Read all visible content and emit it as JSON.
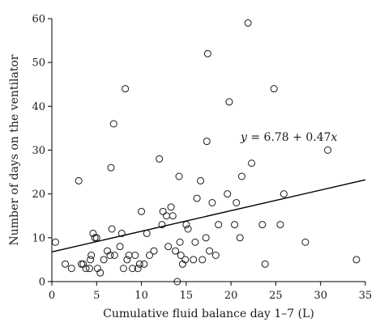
{
  "chart_data": {
    "type": "scatter",
    "xlabel": "Cumulative fluid balance day 1–7 (L)",
    "ylabel": "Number of days on the ventilator",
    "xlim": [
      0,
      35
    ],
    "ylim": [
      0,
      60
    ],
    "xticks": [
      "0",
      "5",
      "10",
      "15",
      "20",
      "25",
      "30",
      "35"
    ],
    "yticks": [
      "0",
      "10",
      "20",
      "30",
      "40",
      "50",
      "60"
    ],
    "grid": false,
    "regression": {
      "label_prefix": "y = ",
      "label_body": "6.78 + 0.47",
      "label_var": "x",
      "intercept": 6.78,
      "slope": 0.47,
      "x_range": [
        0,
        35
      ]
    },
    "points": [
      [
        0.4,
        9
      ],
      [
        1.5,
        4
      ],
      [
        2.2,
        3
      ],
      [
        3,
        23
      ],
      [
        3.3,
        4
      ],
      [
        3.5,
        4
      ],
      [
        3.8,
        3
      ],
      [
        4.2,
        3
      ],
      [
        4.3,
        5
      ],
      [
        4.4,
        6
      ],
      [
        4.6,
        11
      ],
      [
        4.8,
        10
      ],
      [
        5,
        10
      ],
      [
        5.1,
        3
      ],
      [
        5.4,
        2
      ],
      [
        5.8,
        5
      ],
      [
        6.2,
        7
      ],
      [
        6.5,
        6
      ],
      [
        6.6,
        26
      ],
      [
        6.7,
        12
      ],
      [
        6.9,
        36
      ],
      [
        7,
        6
      ],
      [
        7.6,
        8
      ],
      [
        7.8,
        11
      ],
      [
        8,
        3
      ],
      [
        8.2,
        44
      ],
      [
        8.4,
        5
      ],
      [
        8.6,
        6
      ],
      [
        9,
        3
      ],
      [
        9.3,
        6
      ],
      [
        9.6,
        3
      ],
      [
        9.8,
        4
      ],
      [
        10,
        16
      ],
      [
        10.3,
        4
      ],
      [
        10.6,
        11
      ],
      [
        10.9,
        6
      ],
      [
        11.4,
        7
      ],
      [
        12,
        28
      ],
      [
        12.3,
        13
      ],
      [
        12.4,
        16
      ],
      [
        12.8,
        15
      ],
      [
        13,
        8
      ],
      [
        13.3,
        17
      ],
      [
        13.5,
        15
      ],
      [
        13.8,
        7
      ],
      [
        14,
        0
      ],
      [
        14.2,
        24
      ],
      [
        14.3,
        9
      ],
      [
        14.4,
        6
      ],
      [
        14.6,
        4
      ],
      [
        14.9,
        5
      ],
      [
        15,
        13
      ],
      [
        15.2,
        12
      ],
      [
        15.8,
        5
      ],
      [
        16,
        9
      ],
      [
        16.2,
        19
      ],
      [
        16.6,
        23
      ],
      [
        16.8,
        5
      ],
      [
        17.2,
        10
      ],
      [
        17.3,
        32
      ],
      [
        17.4,
        52
      ],
      [
        17.6,
        7
      ],
      [
        17.9,
        18
      ],
      [
        18.3,
        6
      ],
      [
        18.6,
        13
      ],
      [
        19.6,
        20
      ],
      [
        19.8,
        41
      ],
      [
        20.4,
        13
      ],
      [
        20.6,
        18
      ],
      [
        21,
        10
      ],
      [
        21.2,
        24
      ],
      [
        21.9,
        59
      ],
      [
        22.3,
        27
      ],
      [
        23.5,
        13
      ],
      [
        23.8,
        4
      ],
      [
        24.8,
        44
      ],
      [
        25.5,
        13
      ],
      [
        25.9,
        20
      ],
      [
        28.3,
        9
      ],
      [
        30.8,
        30
      ],
      [
        34,
        5
      ]
    ]
  }
}
